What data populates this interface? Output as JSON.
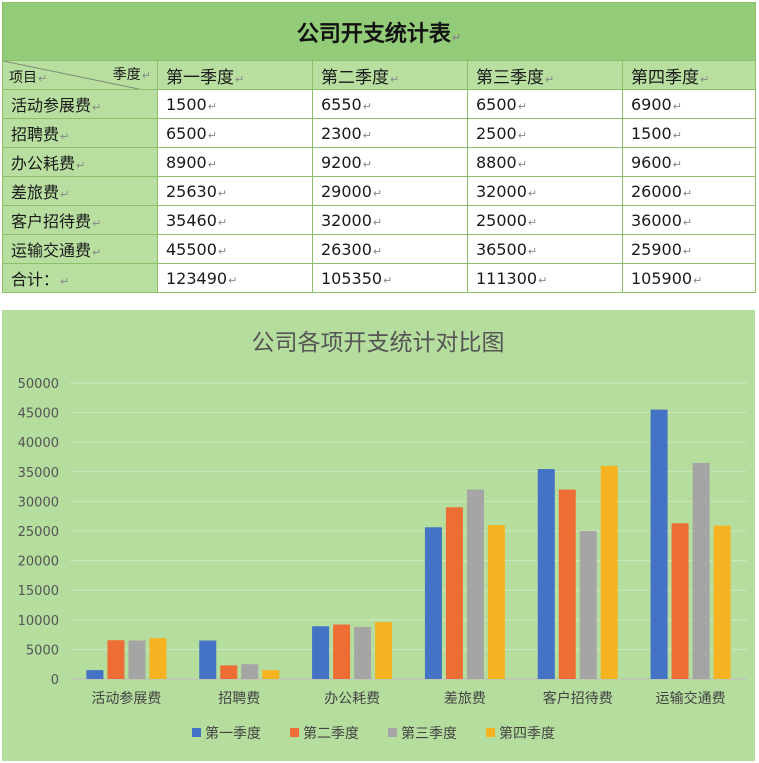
{
  "table": {
    "title": "公司开支统计表",
    "corner_top": "季度",
    "corner_bottom": "项目",
    "return_mark": "↵",
    "header": [
      "第一季度",
      "第二季度",
      "第三季度",
      "第四季度"
    ],
    "rows": [
      {
        "label": "活动参展费",
        "values": [
          "1500",
          "6550",
          "6500",
          "6900"
        ]
      },
      {
        "label": "招聘费",
        "values": [
          "6500",
          "2300",
          "2500",
          "1500"
        ]
      },
      {
        "label": "办公耗费",
        "values": [
          "8900",
          "9200",
          "8800",
          "9600"
        ]
      },
      {
        "label": "差旅费",
        "values": [
          "25630",
          "29000",
          "32000",
          "26000"
        ]
      },
      {
        "label": "客户招待费",
        "values": [
          "35460",
          "32000",
          "25000",
          "36000"
        ]
      },
      {
        "label": "运输交通费",
        "values": [
          "45500",
          "26300",
          "36500",
          "25900"
        ]
      },
      {
        "label": "合计：",
        "values": [
          "123490",
          "105350",
          "111300",
          "105900"
        ]
      }
    ]
  },
  "chart_data": {
    "type": "bar",
    "title": "公司各项开支统计对比图",
    "categories": [
      "活动参展费",
      "招聘费",
      "办公耗费",
      "差旅费",
      "客户招待费",
      "运输交通费"
    ],
    "series": [
      {
        "name": "第一季度",
        "color": "#4472c4",
        "values": [
          1500,
          6500,
          8900,
          25630,
          35460,
          45500
        ]
      },
      {
        "name": "第二季度",
        "color": "#ed6d35",
        "values": [
          6550,
          2300,
          9200,
          29000,
          32000,
          26300
        ]
      },
      {
        "name": "第三季度",
        "color": "#a5a5a5",
        "values": [
          6500,
          2500,
          8800,
          32000,
          25000,
          36500
        ]
      },
      {
        "name": "第四季度",
        "color": "#f5b321",
        "values": [
          6900,
          1500,
          9600,
          26000,
          36000,
          25900
        ]
      }
    ],
    "ylim": [
      0,
      50000
    ],
    "yticks": [
      0,
      5000,
      10000,
      15000,
      20000,
      25000,
      30000,
      35000,
      40000,
      45000,
      50000
    ],
    "grid": true,
    "legend": "bottom-center"
  }
}
